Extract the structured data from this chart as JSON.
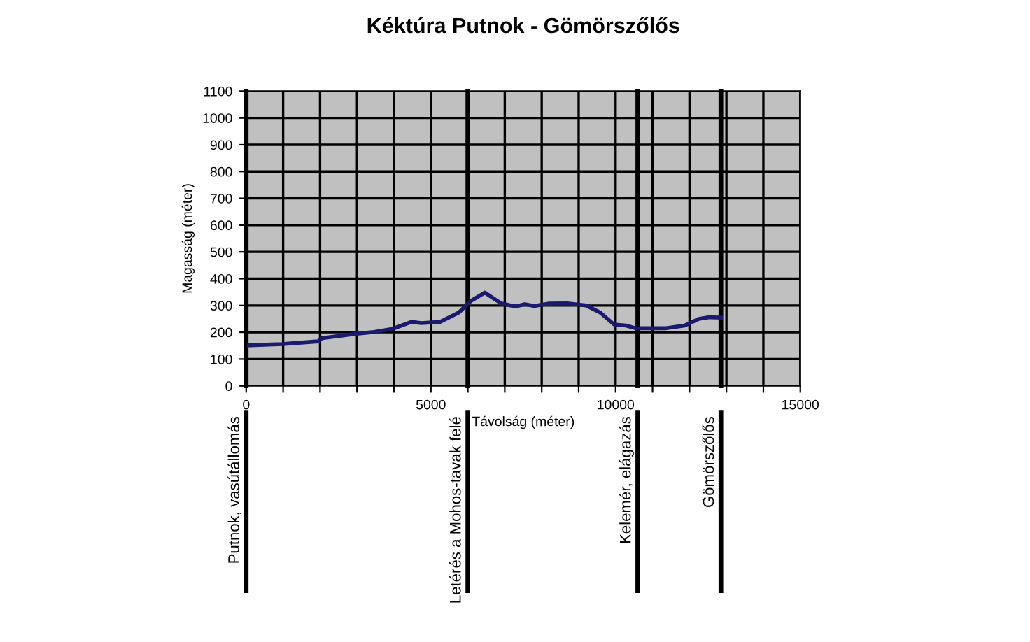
{
  "chart_data": {
    "type": "line",
    "title": "Kéktúra Putnok - Gömörszőlős",
    "xlabel": "Távolság (méter)",
    "ylabel": "Magasság (méter)",
    "x": [
      0,
      980,
      1940,
      2060,
      2950,
      3460,
      3970,
      4480,
      4740,
      5250,
      5760,
      6080,
      6460,
      6900,
      7290,
      7540,
      7800,
      8180,
      8690,
      9200,
      9580,
      9960,
      10280,
      10540,
      11370,
      11870,
      12250,
      12510,
      12850
    ],
    "series": [
      {
        "color": "#1a1a6e",
        "values": [
          151,
          156,
          166,
          178,
          194,
          201,
          213,
          239,
          234,
          239,
          274,
          317,
          348,
          308,
          296,
          305,
          298,
          307,
          308,
          300,
          274,
          229,
          225,
          215,
          215,
          225,
          250,
          256,
          255
        ]
      }
    ],
    "xlim": [
      0,
      15000
    ],
    "ylim": [
      0,
      1100
    ],
    "xticks": [
      0,
      {
        "value": 1000,
        "label": null
      },
      {
        "value": 2000,
        "label": null
      },
      {
        "value": 3000,
        "label": null
      },
      {
        "value": 4000,
        "label": null
      },
      5000,
      {
        "value": 6000,
        "label": null
      },
      {
        "value": 7000,
        "label": null
      },
      {
        "value": 8000,
        "label": null
      },
      {
        "value": 9000,
        "label": null
      },
      10000,
      {
        "value": 11000,
        "label": null
      },
      {
        "value": 12000,
        "label": null
      },
      {
        "value": 13000,
        "label": null
      },
      {
        "value": 14000,
        "label": null
      },
      15000
    ],
    "yticks": [
      0,
      100,
      200,
      300,
      400,
      500,
      600,
      700,
      800,
      900,
      1000,
      1100
    ],
    "grid": true,
    "marker": "none",
    "line_style": "solid",
    "ref_lines": [
      {
        "axis": "x",
        "value": 0,
        "label": "Putnok, vasútállomás"
      },
      {
        "axis": "x",
        "value": 6000,
        "label": "Letérés a Mohos-tavak felé"
      },
      {
        "axis": "x",
        "value": 10600,
        "label": "Kelemér, elágazás"
      },
      {
        "axis": "x",
        "value": 12850,
        "label": "Gömörszőlős"
      }
    ]
  }
}
